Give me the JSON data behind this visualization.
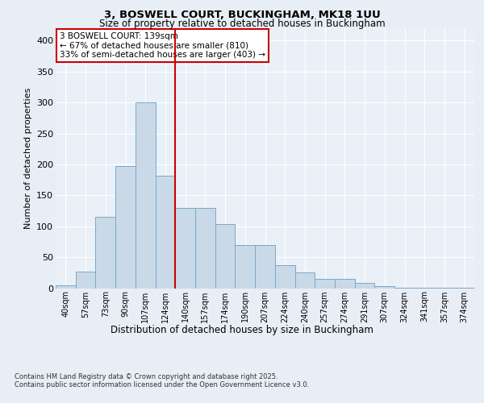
{
  "title_line1": "3, BOSWELL COURT, BUCKINGHAM, MK18 1UU",
  "title_line2": "Size of property relative to detached houses in Buckingham",
  "xlabel": "Distribution of detached houses by size in Buckingham",
  "ylabel": "Number of detached properties",
  "bar_labels": [
    "40sqm",
    "57sqm",
    "73sqm",
    "90sqm",
    "107sqm",
    "124sqm",
    "140sqm",
    "157sqm",
    "174sqm",
    "190sqm",
    "207sqm",
    "224sqm",
    "240sqm",
    "257sqm",
    "274sqm",
    "291sqm",
    "307sqm",
    "324sqm",
    "341sqm",
    "357sqm",
    "374sqm"
  ],
  "bar_values": [
    5,
    27,
    115,
    197,
    300,
    182,
    130,
    130,
    103,
    70,
    70,
    37,
    25,
    15,
    15,
    8,
    3,
    1,
    1,
    1,
    1
  ],
  "bar_color": "#c9d9e8",
  "bar_edge_color": "#7ca8c8",
  "vline_color": "#cc0000",
  "annotation_title": "3 BOSWELL COURT: 139sqm",
  "annotation_line2": "← 67% of detached houses are smaller (810)",
  "annotation_line3": "33% of semi-detached houses are larger (403) →",
  "annotation_box_color": "#cc0000",
  "ylim": [
    0,
    420
  ],
  "yticks": [
    0,
    50,
    100,
    150,
    200,
    250,
    300,
    350,
    400
  ],
  "footnote1": "Contains HM Land Registry data © Crown copyright and database right 2025.",
  "footnote2": "Contains public sector information licensed under the Open Government Licence v3.0.",
  "bg_color": "#e8eef5",
  "plot_bg_color": "#eaf0f7",
  "grid_color": "#ffffff"
}
